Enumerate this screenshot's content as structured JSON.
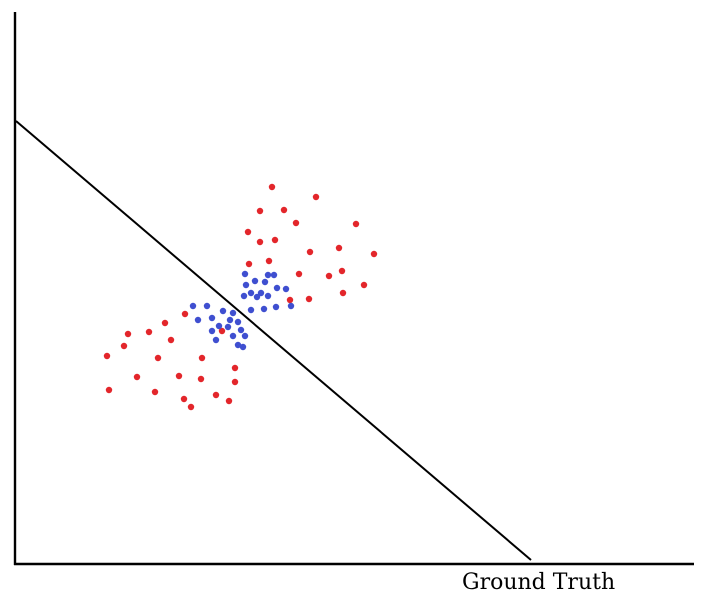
{
  "caption": "Ground Truth",
  "colors": {
    "axis": "#000000",
    "boundary": "#000000",
    "class_a": "#e3262b",
    "class_b": "#3f4fd0"
  },
  "scatter": {
    "class_a_points": [
      [
        272,
        187
      ],
      [
        316,
        197
      ],
      [
        260,
        211
      ],
      [
        284,
        210
      ],
      [
        356,
        224
      ],
      [
        296,
        223
      ],
      [
        248,
        232
      ],
      [
        260,
        242
      ],
      [
        275,
        240
      ],
      [
        339,
        248
      ],
      [
        310,
        252
      ],
      [
        374,
        254
      ],
      [
        249,
        264
      ],
      [
        269,
        261
      ],
      [
        299,
        274
      ],
      [
        329,
        276
      ],
      [
        342,
        271
      ],
      [
        364,
        285
      ],
      [
        343,
        293
      ],
      [
        309,
        299
      ],
      [
        290,
        300
      ],
      [
        185,
        314
      ],
      [
        165,
        323
      ],
      [
        128,
        334
      ],
      [
        149,
        332
      ],
      [
        222,
        331
      ],
      [
        171,
        340
      ],
      [
        124,
        346
      ],
      [
        107,
        356
      ],
      [
        158,
        358
      ],
      [
        202,
        358
      ],
      [
        235,
        368
      ],
      [
        137,
        377
      ],
      [
        179,
        376
      ],
      [
        201,
        379
      ],
      [
        235,
        382
      ],
      [
        109,
        390
      ],
      [
        155,
        392
      ],
      [
        216,
        395
      ],
      [
        184,
        399
      ],
      [
        229,
        401
      ],
      [
        191,
        407
      ]
    ],
    "class_b_points": [
      [
        245,
        274
      ],
      [
        268,
        275
      ],
      [
        274,
        275
      ],
      [
        255,
        281
      ],
      [
        265,
        282
      ],
      [
        246,
        285
      ],
      [
        277,
        288
      ],
      [
        286,
        289
      ],
      [
        251,
        293
      ],
      [
        261,
        293
      ],
      [
        268,
        296
      ],
      [
        244,
        296
      ],
      [
        193,
        306
      ],
      [
        207,
        306
      ],
      [
        257,
        297
      ],
      [
        291,
        306
      ],
      [
        276,
        307
      ],
      [
        223,
        311
      ],
      [
        233,
        313
      ],
      [
        264,
        309
      ],
      [
        251,
        310
      ],
      [
        198,
        320
      ],
      [
        212,
        318
      ],
      [
        230,
        320
      ],
      [
        238,
        322
      ],
      [
        228,
        327
      ],
      [
        219,
        326
      ],
      [
        241,
        330
      ],
      [
        212,
        331
      ],
      [
        245,
        336
      ],
      [
        233,
        336
      ],
      [
        216,
        340
      ],
      [
        238,
        345
      ],
      [
        243,
        347
      ]
    ]
  }
}
